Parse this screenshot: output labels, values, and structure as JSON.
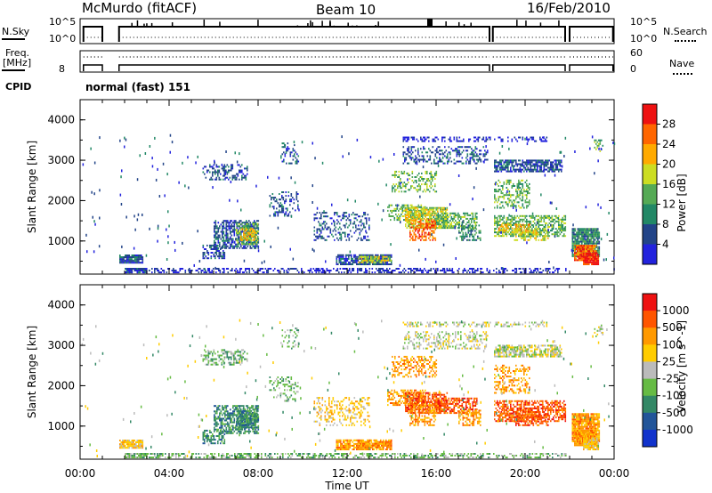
{
  "header": {
    "station": "McMurdo (fitACF)",
    "beam": "Beam 10",
    "date": "16/Feb/2010"
  },
  "strip": {
    "nsky_label": "N.Sky",
    "nsky_ticks": [
      "10^5",
      "10^0"
    ],
    "nsearch_label": "N.Search",
    "nsearch_ticks": [
      "10^5",
      "10^0"
    ],
    "freq_label": "Freq.",
    "freq_unit": "[MHz]",
    "freq_tick": "8",
    "nave_label": "Nave",
    "nave_ticks": [
      "60",
      "0"
    ],
    "cpid_label": "CPID",
    "cpid_value": "normal (fast) 151"
  },
  "chart_data": [
    {
      "type": "heatmap",
      "title": "",
      "xlabel": "",
      "ylabel": "Slant Range [km]",
      "yticks": [
        "4000",
        "3000",
        "2000",
        "1000"
      ],
      "ylim": [
        180,
        4500
      ],
      "colorbar": {
        "label": "Power [dB]",
        "ticks": [
          "28",
          "24",
          "20",
          "16",
          "12",
          "8",
          "4"
        ],
        "range": [
          0,
          30
        ],
        "colors": [
          "#2222dd",
          "#224488",
          "#228866",
          "#55aa55",
          "#ccdd22",
          "#ffaa00",
          "#ff6600",
          "#ee1111"
        ]
      }
    },
    {
      "type": "heatmap",
      "title": "",
      "xlabel": "Time UT",
      "ylabel": "Slant Range [km]",
      "xticks": [
        "00:00",
        "04:00",
        "08:00",
        "12:00",
        "16:00",
        "20:00",
        "00:00"
      ],
      "yticks": [
        "4000",
        "3000",
        "2000",
        "1000"
      ],
      "ylim": [
        180,
        4500
      ],
      "colorbar": {
        "label": "Velocity [m s^-1]",
        "ticks": [
          "1000",
          "500",
          "100",
          "25",
          "-25",
          "-100",
          "-500",
          "-1000"
        ],
        "colors": [
          "#1133cc",
          "#225599",
          "#338866",
          "#66bb44",
          "#bbbbbb",
          "#ffcc00",
          "#ff9900",
          "#ff5500",
          "#ee1111"
        ]
      }
    }
  ]
}
